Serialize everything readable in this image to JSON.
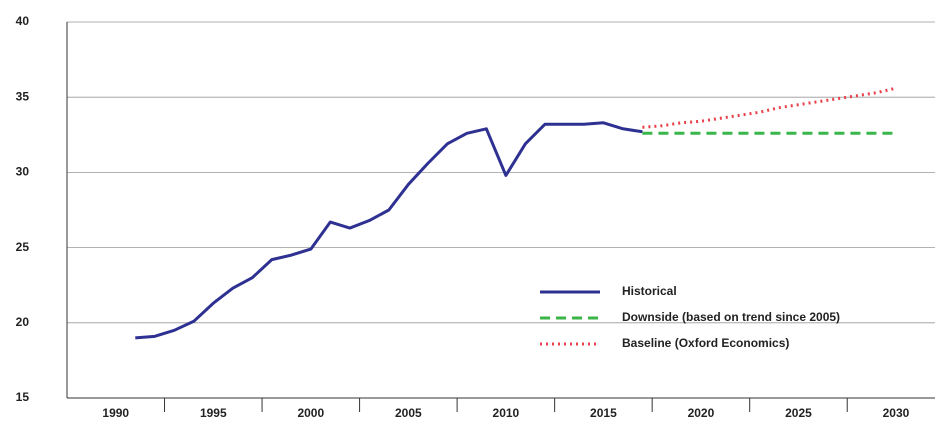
{
  "chart_data": {
    "type": "line",
    "xlim": [
      1987.5,
      2032
    ],
    "xticks": [
      1990,
      1995,
      2000,
      2005,
      2010,
      2015,
      2020,
      2025,
      2030
    ],
    "ylim": [
      15,
      40
    ],
    "yticks": [
      15,
      20,
      25,
      30,
      35,
      40
    ],
    "grid": true,
    "legend": "lower right",
    "series": [
      {
        "name": "Historical",
        "color": "#2e3192",
        "style": "solid",
        "x": [
          1991,
          1992,
          1993,
          1994,
          1995,
          1996,
          1997,
          1998,
          1999,
          2000,
          2001,
          2002,
          2003,
          2004,
          2005,
          2006,
          2007,
          2008,
          2009,
          2010,
          2011,
          2012,
          2013,
          2014,
          2015,
          2016,
          2017
        ],
        "values": [
          19.0,
          19.1,
          19.5,
          20.1,
          21.3,
          22.3,
          23.0,
          24.2,
          24.5,
          24.9,
          26.7,
          26.3,
          26.8,
          27.5,
          29.2,
          30.6,
          31.9,
          32.6,
          32.9,
          29.8,
          31.9,
          33.2,
          33.2,
          33.2,
          33.3,
          32.9,
          32.7
        ]
      },
      {
        "name": "Downside (based on trend since 2005)",
        "color": "#3ab54a",
        "style": "dashed",
        "x": [
          2017,
          2018,
          2019,
          2020,
          2021,
          2022,
          2023,
          2024,
          2025,
          2026,
          2027,
          2028,
          2029,
          2030
        ],
        "values": [
          32.6,
          32.6,
          32.6,
          32.6,
          32.6,
          32.6,
          32.6,
          32.6,
          32.6,
          32.6,
          32.6,
          32.6,
          32.6,
          32.6
        ]
      },
      {
        "name": "Baseline (Oxford Economics)",
        "color": "#e8414b",
        "style": "dotted",
        "x": [
          2017,
          2018,
          2019,
          2020,
          2021,
          2022,
          2023,
          2024,
          2025,
          2026,
          2027,
          2028,
          2029,
          2030
        ],
        "values": [
          33.0,
          33.1,
          33.3,
          33.4,
          33.6,
          33.8,
          34.0,
          34.3,
          34.5,
          34.7,
          34.9,
          35.1,
          35.3,
          35.6
        ]
      }
    ]
  }
}
